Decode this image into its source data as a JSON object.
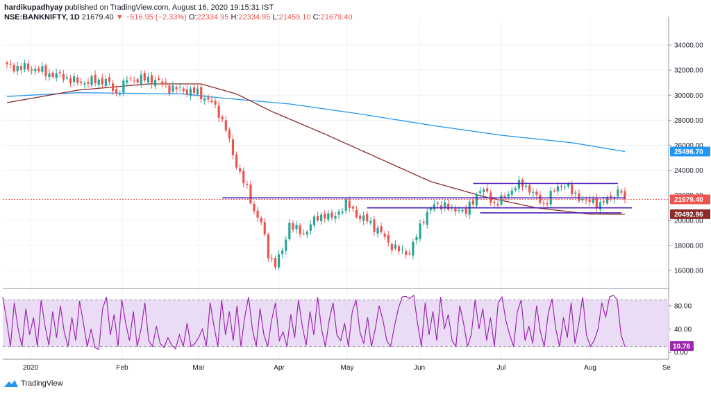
{
  "header": {
    "author": "hardikupadhyay",
    "published": "published on TradingView.com, August 16, 2020 19:15:31 IST",
    "symbol": "NSE:BANKNIFTY, 1D",
    "last": "21679.40",
    "change": "−516.95 (−2.33%)",
    "o_label": "O:",
    "o": "22334.95",
    "h_label": "H:",
    "h": "22334.95",
    "l_label": "L:",
    "l": "21459.10",
    "c_label": "C:",
    "c": "21679.40"
  },
  "footer": {
    "brand": "TradingView"
  },
  "colors": {
    "up": "#26a69a",
    "down": "#ef5350",
    "ma_fast": "#8d2a2a",
    "ma_slow": "#2196f3",
    "trendline": "#4a1fb8",
    "rsi": "#9c27b0",
    "rsi_band": "#ebdcf5",
    "grid": "#eef0f3"
  },
  "chart_data": [
    {
      "type": "candlestick",
      "title": "NSE:BANKNIFTY, 1D",
      "ylim": [
        15000,
        35000
      ],
      "y_ticks": [
        "34000.00",
        "32000.00",
        "30000.00",
        "28000.00",
        "26000.00",
        "24000.00",
        "22000.00",
        "20000.00",
        "18000.00",
        "16000.00"
      ],
      "x_ticks": [
        "2020",
        "Feb",
        "Mar",
        "Apr",
        "May",
        "Jun",
        "Jul",
        "Aug",
        "Se"
      ],
      "price_labels": [
        {
          "text": "25496.70",
          "value": 25496.7,
          "color": "#2196f3"
        },
        {
          "text": "21679.40",
          "value": 21679.4,
          "color": "#ef5350"
        },
        {
          "text": "20492.96",
          "value": 20492.96,
          "color": "#8d2a2a"
        }
      ],
      "anchors": [
        [
          0,
          32300
        ],
        [
          8,
          32100
        ],
        [
          12,
          31700
        ],
        [
          16,
          31500
        ],
        [
          20,
          31000
        ],
        [
          24,
          31100
        ],
        [
          28,
          31200
        ],
        [
          31,
          30100
        ],
        [
          34,
          31200
        ],
        [
          38,
          31300
        ],
        [
          42,
          31200
        ],
        [
          46,
          30600
        ],
        [
          50,
          30400
        ],
        [
          54,
          30200
        ],
        [
          58,
          29400
        ],
        [
          60,
          28600
        ],
        [
          62,
          27300
        ],
        [
          64,
          25200
        ],
        [
          66,
          23800
        ],
        [
          68,
          22400
        ],
        [
          70,
          20800
        ],
        [
          72,
          19800
        ],
        [
          74,
          17300
        ],
        [
          76,
          16500
        ],
        [
          78,
          17500
        ],
        [
          80,
          19800
        ],
        [
          82,
          19200
        ],
        [
          84,
          18900
        ],
        [
          86,
          19700
        ],
        [
          88,
          20200
        ],
        [
          90,
          20500
        ],
        [
          92,
          20100
        ],
        [
          94,
          20700
        ],
        [
          96,
          21300
        ],
        [
          98,
          20800
        ],
        [
          100,
          20200
        ],
        [
          102,
          20000
        ],
        [
          104,
          19500
        ],
        [
          106,
          19000
        ],
        [
          108,
          18200
        ],
        [
          110,
          17800
        ],
        [
          112,
          17400
        ],
        [
          114,
          17500
        ],
        [
          116,
          18700
        ],
        [
          118,
          20200
        ],
        [
          120,
          21000
        ],
        [
          122,
          21200
        ],
        [
          124,
          21300
        ],
        [
          126,
          20700
        ],
        [
          128,
          21000
        ],
        [
          130,
          20600
        ],
        [
          132,
          21600
        ],
        [
          134,
          22500
        ],
        [
          136,
          22100
        ],
        [
          138,
          21300
        ],
        [
          140,
          21600
        ],
        [
          142,
          22200
        ],
        [
          144,
          22700
        ],
        [
          146,
          22900
        ],
        [
          148,
          22500
        ],
        [
          150,
          21800
        ],
        [
          152,
          21300
        ],
        [
          154,
          22000
        ],
        [
          156,
          22700
        ],
        [
          158,
          22900
        ],
        [
          160,
          22200
        ],
        [
          162,
          21900
        ],
        [
          164,
          21400
        ],
        [
          166,
          21600
        ],
        [
          168,
          21200
        ],
        [
          170,
          21700
        ],
        [
          172,
          22100
        ],
        [
          174,
          22300
        ],
        [
          175,
          21680
        ]
      ],
      "ma_slow": [
        [
          0,
          29900
        ],
        [
          20,
          30200
        ],
        [
          50,
          30100
        ],
        [
          60,
          29800
        ],
        [
          80,
          29300
        ],
        [
          100,
          28500
        ],
        [
          120,
          27600
        ],
        [
          140,
          26800
        ],
        [
          160,
          26200
        ],
        [
          175,
          25500
        ]
      ],
      "ma_fast": [
        [
          0,
          29400
        ],
        [
          20,
          30400
        ],
        [
          40,
          30900
        ],
        [
          55,
          30900
        ],
        [
          65,
          30100
        ],
        [
          75,
          28700
        ],
        [
          90,
          26900
        ],
        [
          105,
          25000
        ],
        [
          120,
          23100
        ],
        [
          135,
          21900
        ],
        [
          150,
          21000
        ],
        [
          165,
          20500
        ],
        [
          175,
          20493
        ]
      ],
      "trendlines": [
        {
          "from": [
            61,
            21800
          ],
          "to": [
            175,
            21800
          ]
        },
        {
          "from": [
            102,
            21000
          ],
          "to": [
            177,
            21000
          ]
        },
        {
          "from": [
            132,
            22950
          ],
          "to": [
            173,
            22950
          ]
        },
        {
          "from": [
            134,
            20600
          ],
          "to": [
            174,
            20600
          ]
        }
      ],
      "last_line": 21679.4
    },
    {
      "type": "line",
      "name": "RSI",
      "ylim": [
        0,
        100
      ],
      "y_ticks": [
        "80.00",
        "40.00",
        "0.00"
      ],
      "band": [
        10,
        90
      ],
      "current": "10.76",
      "values": [
        95,
        55,
        10,
        85,
        40,
        10,
        75,
        30,
        60,
        10,
        90,
        45,
        12,
        70,
        25,
        80,
        35,
        10,
        60,
        20,
        88,
        50,
        10,
        40,
        8,
        5,
        75,
        95,
        30,
        65,
        10,
        90,
        50,
        20,
        70,
        10,
        40,
        85,
        20,
        10,
        45,
        15,
        8,
        25,
        12,
        6,
        30,
        10,
        50,
        10,
        15,
        25,
        40,
        10,
        85,
        45,
        10,
        90,
        30,
        70,
        20,
        80,
        10,
        60,
        95,
        40,
        10,
        75,
        30,
        10,
        55,
        85,
        20,
        35,
        10,
        65,
        25,
        90,
        45,
        12,
        70,
        30,
        95,
        40,
        10,
        55,
        85,
        30,
        20,
        50,
        10,
        70,
        90,
        35,
        15,
        60,
        10,
        40,
        80,
        55,
        20,
        10,
        45,
        75,
        95,
        96,
        92,
        98,
        50,
        10,
        85,
        30,
        70,
        20,
        95,
        40,
        65,
        20,
        10,
        80,
        50,
        10,
        30,
        90,
        40,
        75,
        20,
        60,
        10,
        85,
        95,
        55,
        30,
        10,
        70,
        90,
        20,
        45,
        15,
        80,
        35,
        10,
        65,
        92,
        40,
        10,
        60,
        25,
        85,
        15,
        50,
        95,
        30,
        10,
        20,
        40,
        85,
        60,
        95,
        98,
        90,
        30,
        10
      ]
    }
  ]
}
